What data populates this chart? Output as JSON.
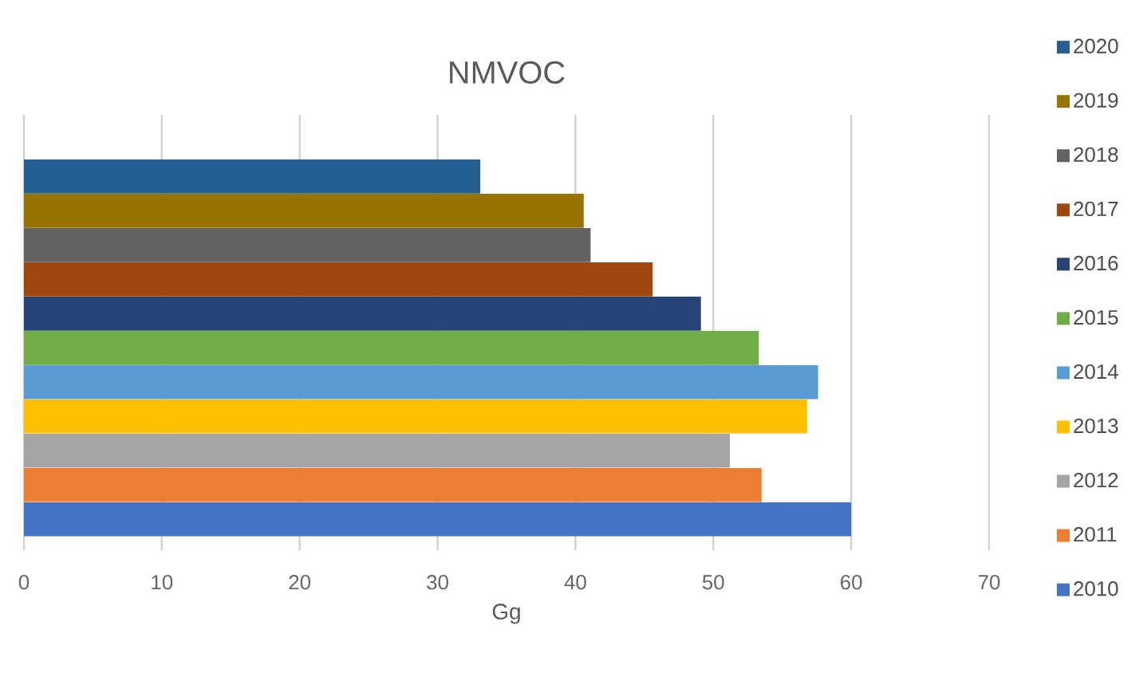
{
  "chart_data": {
    "type": "bar",
    "orientation": "horizontal",
    "title": "NMVOC",
    "xlabel": "Gg",
    "categories": [
      null
    ],
    "series": [
      {
        "name": "2010",
        "color": "#4472c4",
        "values": [
          60.0
        ]
      },
      {
        "name": "2011",
        "color": "#ed7d31",
        "values": [
          53.5
        ]
      },
      {
        "name": "2012",
        "color": "#a5a5a5",
        "values": [
          51.2
        ]
      },
      {
        "name": "2013",
        "color": "#ffc000",
        "values": [
          56.8
        ]
      },
      {
        "name": "2014",
        "color": "#5b9bd5",
        "values": [
          57.6
        ]
      },
      {
        "name": "2015",
        "color": "#70ad47",
        "values": [
          53.3
        ]
      },
      {
        "name": "2016",
        "color": "#264478",
        "values": [
          49.1
        ]
      },
      {
        "name": "2017",
        "color": "#9e480e",
        "values": [
          45.6
        ]
      },
      {
        "name": "2018",
        "color": "#636363",
        "values": [
          41.1
        ]
      },
      {
        "name": "2019",
        "color": "#997300",
        "values": [
          40.6
        ]
      },
      {
        "name": "2020",
        "color": "#255e91",
        "values": [
          33.1
        ]
      }
    ],
    "xlim": [
      0,
      70
    ],
    "xticks": [
      0,
      10,
      20,
      30,
      40,
      50,
      60,
      70
    ],
    "grid": "x",
    "legend": "right",
    "tick_labels": "x"
  }
}
